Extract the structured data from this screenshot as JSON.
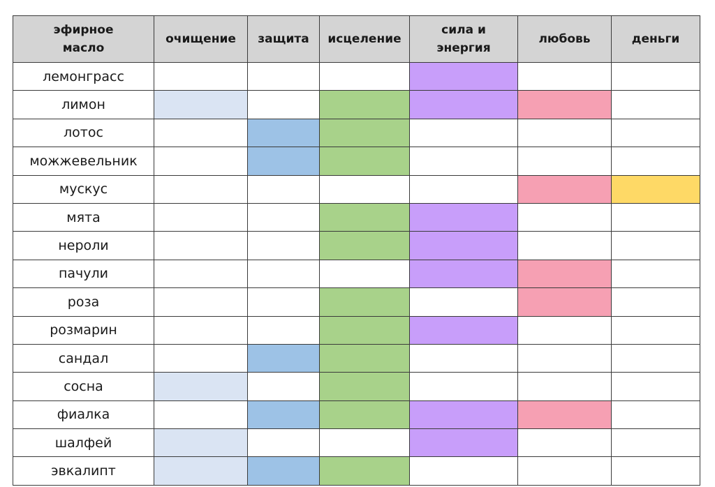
{
  "table": {
    "columns": [
      {
        "key": "oil",
        "label": "эфирное масло",
        "color": ""
      },
      {
        "key": "cleansing",
        "label": "очищение",
        "color": "#dae4f3"
      },
      {
        "key": "protection",
        "label": "защита",
        "color": "#9dc2e6"
      },
      {
        "key": "healing",
        "label": "исцеление",
        "color": "#a8d28a"
      },
      {
        "key": "power",
        "label": "сила и энергия",
        "color": "#c89efa"
      },
      {
        "key": "love",
        "label": "любовь",
        "color": "#f6a0b3"
      },
      {
        "key": "money",
        "label": "деньги",
        "color": "#fed966"
      }
    ],
    "rows": [
      {
        "name": "лемонграсс",
        "marks": [
          false,
          false,
          false,
          true,
          false,
          false
        ]
      },
      {
        "name": "лимон",
        "marks": [
          true,
          false,
          true,
          true,
          true,
          false
        ]
      },
      {
        "name": "лотос",
        "marks": [
          false,
          true,
          true,
          false,
          false,
          false
        ]
      },
      {
        "name": "можжевельник",
        "marks": [
          false,
          true,
          true,
          false,
          false,
          false
        ]
      },
      {
        "name": "мускус",
        "marks": [
          false,
          false,
          false,
          false,
          true,
          true
        ]
      },
      {
        "name": "мята",
        "marks": [
          false,
          false,
          true,
          true,
          false,
          false
        ]
      },
      {
        "name": "нероли",
        "marks": [
          false,
          false,
          true,
          true,
          false,
          false
        ]
      },
      {
        "name": "пачули",
        "marks": [
          false,
          false,
          false,
          true,
          true,
          false
        ]
      },
      {
        "name": "роза",
        "marks": [
          false,
          false,
          true,
          false,
          true,
          false
        ]
      },
      {
        "name": "розмарин",
        "marks": [
          false,
          false,
          true,
          true,
          false,
          false
        ]
      },
      {
        "name": "сандал",
        "marks": [
          false,
          true,
          true,
          false,
          false,
          false
        ]
      },
      {
        "name": "сосна",
        "marks": [
          true,
          false,
          true,
          false,
          false,
          false
        ]
      },
      {
        "name": "фиалка",
        "marks": [
          false,
          true,
          true,
          true,
          true,
          false
        ]
      },
      {
        "name": "шалфей",
        "marks": [
          true,
          false,
          false,
          true,
          false,
          false
        ]
      },
      {
        "name": "эвкалипт",
        "marks": [
          true,
          true,
          true,
          false,
          false,
          false
        ]
      }
    ]
  }
}
